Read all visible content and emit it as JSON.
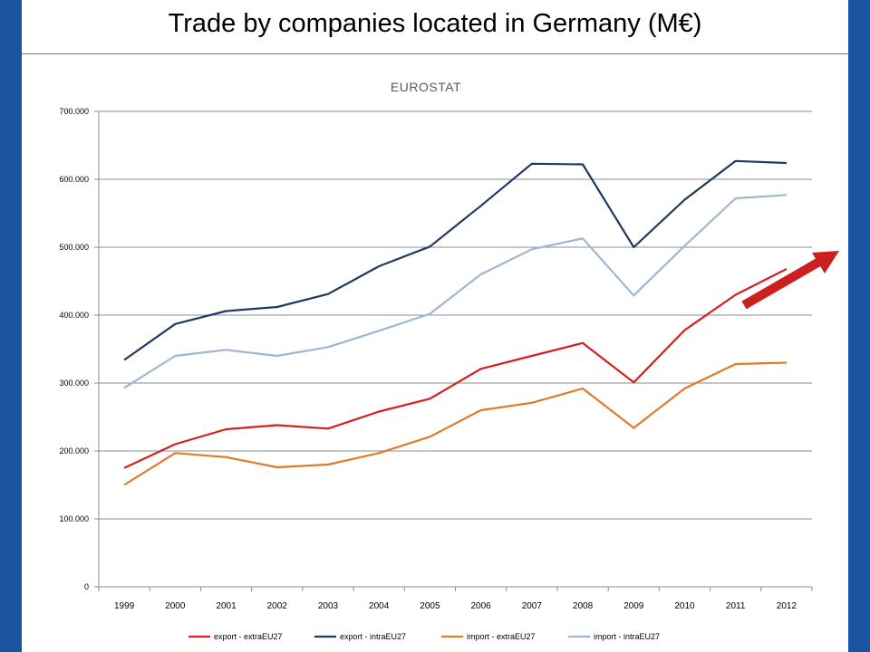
{
  "slide": {
    "title": "Trade by companies located in Germany (M€)"
  },
  "colors": {
    "side_bar": "#1b55a0",
    "arrow": "#cc1f1f"
  },
  "chart_data": {
    "type": "line",
    "subtitle": "EUROSTAT",
    "xlabel": "",
    "ylabel": "",
    "x": [
      "1999",
      "2000",
      "2001",
      "2002",
      "2003",
      "2004",
      "2005",
      "2006",
      "2007",
      "2008",
      "2009",
      "2010",
      "2011",
      "2012"
    ],
    "ylim": [
      0,
      700000
    ],
    "yticks": [
      0,
      100000,
      200000,
      300000,
      400000,
      500000,
      600000,
      700000
    ],
    "ytick_labels": [
      "0",
      "100.000",
      "200.000",
      "300.000",
      "400.000",
      "500.000",
      "600.000",
      "700.000"
    ],
    "grid": true,
    "legend_position": "bottom",
    "series": [
      {
        "name": "export - extraEU27",
        "color": "#d42020",
        "values": [
          175000,
          210000,
          232000,
          238000,
          233000,
          258000,
          277000,
          321000,
          340000,
          359000,
          301000,
          378000,
          430000,
          468000
        ]
      },
      {
        "name": "export - intraEU27",
        "color": "#1f3a5f",
        "values": [
          334000,
          387000,
          406000,
          412000,
          431000,
          472000,
          501000,
          561000,
          623000,
          622000,
          500000,
          570000,
          627000,
          624000
        ]
      },
      {
        "name": "import - extraEU27",
        "color": "#e07b2a",
        "values": [
          150000,
          197000,
          191000,
          176000,
          180000,
          197000,
          221000,
          260000,
          271000,
          292000,
          234000,
          292000,
          328000,
          330000
        ]
      },
      {
        "name": "import - intraEU27",
        "color": "#9fb6d3",
        "values": [
          293000,
          340000,
          349000,
          340000,
          353000,
          377000,
          402000,
          460000,
          497000,
          513000,
          429000,
          502000,
          572000,
          577000
        ]
      }
    ],
    "annotation": {
      "type": "arrow",
      "meaning": "upward trend"
    }
  }
}
